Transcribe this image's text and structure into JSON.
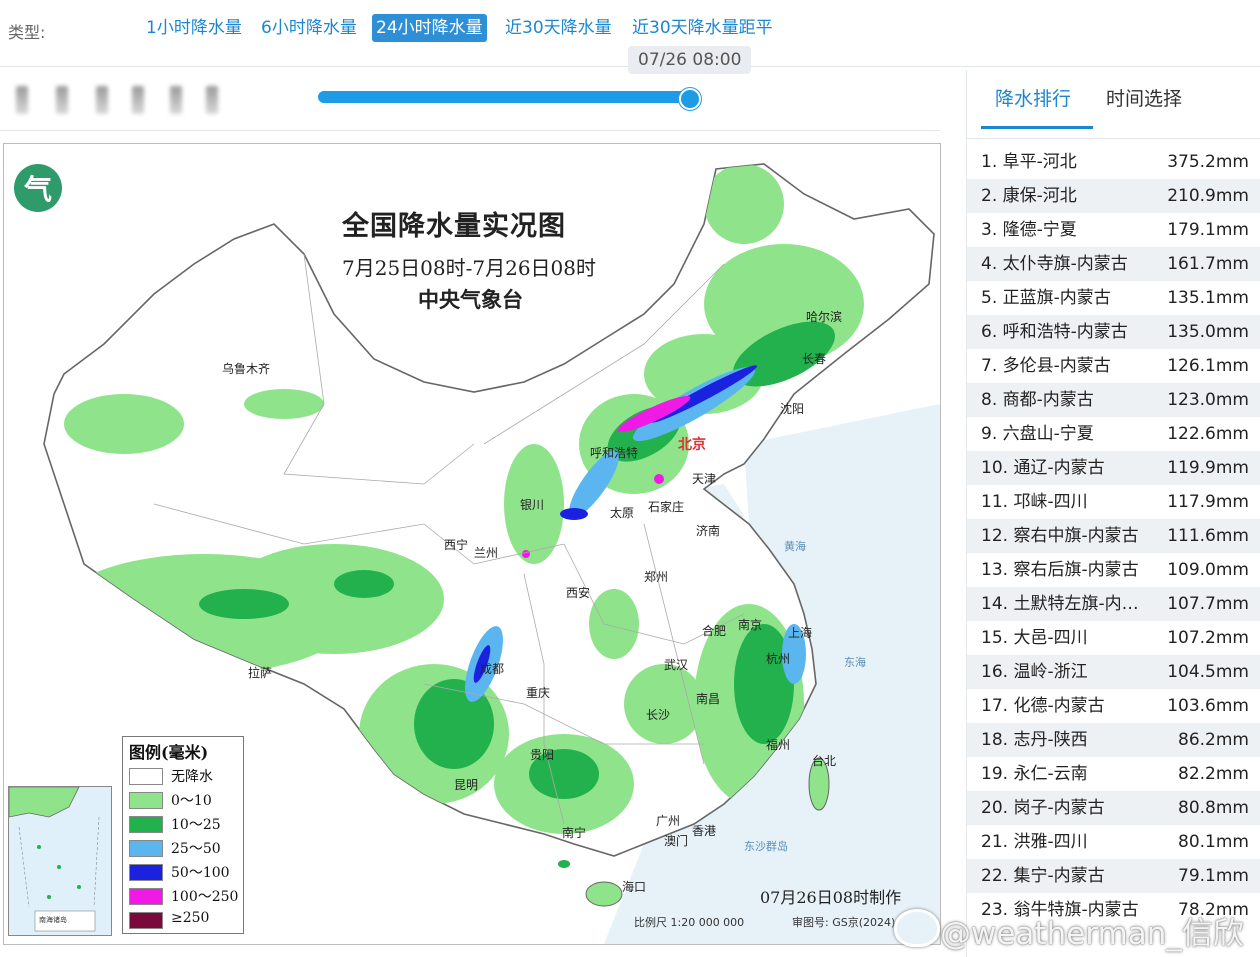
{
  "type_bar": {
    "label": "类型:",
    "tabs": [
      "1小时降水量",
      "6小时降水量",
      "24小时降水量",
      "近30天降水量",
      "近30天降水量距平"
    ],
    "active_index": 2
  },
  "timeline": {
    "current_time": "07/26 08:00",
    "progress": 1.0
  },
  "map": {
    "title": "全国降水量实况图",
    "subtitle": "7月25日08时-7月26日08时",
    "agency": "中央气象台",
    "made_time": "07月26日08时制作",
    "scale": "比例尺  1:20 000 000",
    "map_number": "审图号: GS京(2024)",
    "inset_label": "南海诸岛",
    "legend": {
      "title": "图例(毫米)",
      "items": [
        {
          "label": "无降水",
          "color": "#ffffff"
        },
        {
          "label": "0～10",
          "color": "#8fe38b"
        },
        {
          "label": "10～25",
          "color": "#22b14c"
        },
        {
          "label": "25～50",
          "color": "#5bb6f0"
        },
        {
          "label": "50～100",
          "color": "#1a22e0"
        },
        {
          "label": "100～250",
          "color": "#f019e6"
        },
        {
          "label": "≥250",
          "color": "#7a0a3c"
        }
      ]
    },
    "cities": [
      {
        "name": "乌鲁木齐"
      },
      {
        "name": "哈尔滨"
      },
      {
        "name": "长春"
      },
      {
        "name": "沈阳"
      },
      {
        "name": "呼和浩特"
      },
      {
        "name": "北京"
      },
      {
        "name": "天津"
      },
      {
        "name": "银川"
      },
      {
        "name": "太原"
      },
      {
        "name": "石家庄"
      },
      {
        "name": "济南"
      },
      {
        "name": "西宁"
      },
      {
        "name": "兰州"
      },
      {
        "name": "郑州"
      },
      {
        "name": "西安"
      },
      {
        "name": "合肥"
      },
      {
        "name": "南京"
      },
      {
        "name": "上海"
      },
      {
        "name": "拉萨"
      },
      {
        "name": "成都"
      },
      {
        "name": "武汉"
      },
      {
        "name": "杭州"
      },
      {
        "name": "重庆"
      },
      {
        "name": "长沙"
      },
      {
        "name": "南昌"
      },
      {
        "name": "贵阳"
      },
      {
        "name": "福州"
      },
      {
        "name": "台北"
      },
      {
        "name": "昆明"
      },
      {
        "name": "南宁"
      },
      {
        "name": "广州"
      },
      {
        "name": "香港"
      },
      {
        "name": "澳门"
      },
      {
        "name": "海口"
      }
    ],
    "seas": [
      "黄海",
      "东海",
      "东沙群岛"
    ]
  },
  "panel": {
    "tabs": [
      "降水排行",
      "时间选择"
    ],
    "active_index": 0,
    "ranking": [
      {
        "name": "1. 阜平-河北",
        "value": "375.2mm"
      },
      {
        "name": "2. 康保-河北",
        "value": "210.9mm"
      },
      {
        "name": "3. 隆德-宁夏",
        "value": "179.1mm"
      },
      {
        "name": "4. 太仆寺旗-内蒙古",
        "value": "161.7mm"
      },
      {
        "name": "5. 正蓝旗-内蒙古",
        "value": "135.1mm"
      },
      {
        "name": "6. 呼和浩特-内蒙古",
        "value": "135.0mm"
      },
      {
        "name": "7. 多伦县-内蒙古",
        "value": "126.1mm"
      },
      {
        "name": "8. 商都-内蒙古",
        "value": "123.0mm"
      },
      {
        "name": "9. 六盘山-宁夏",
        "value": "122.6mm"
      },
      {
        "name": "10. 通辽-内蒙古",
        "value": "119.9mm"
      },
      {
        "name": "11. 邛崃-四川",
        "value": "117.9mm"
      },
      {
        "name": "12. 察右中旗-内蒙古",
        "value": "111.6mm"
      },
      {
        "name": "13. 察右后旗-内蒙古",
        "value": "109.0mm"
      },
      {
        "name": "14. 土默特左旗-内…",
        "value": "107.7mm"
      },
      {
        "name": "15. 大邑-四川",
        "value": "107.2mm"
      },
      {
        "name": "16. 温岭-浙江",
        "value": "104.5mm"
      },
      {
        "name": "17. 化德-内蒙古",
        "value": "103.6mm"
      },
      {
        "name": "18. 志丹-陕西",
        "value": "86.2mm"
      },
      {
        "name": "19. 永仁-云南",
        "value": "82.2mm"
      },
      {
        "name": "20. 岗子-内蒙古",
        "value": "80.8mm"
      },
      {
        "name": "21. 洪雅-四川",
        "value": "80.1mm"
      },
      {
        "name": "22. 集宁-内蒙古",
        "value": "79.1mm"
      },
      {
        "name": "23. 翁牛特旗-内蒙古",
        "value": "78.2mm"
      }
    ]
  },
  "watermark": "@weatherman_信欣"
}
